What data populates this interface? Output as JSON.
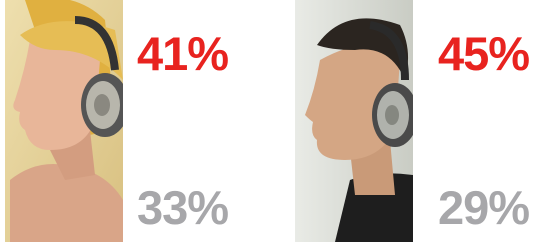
{
  "panels": [
    {
      "top": "41%",
      "bottom": "33%"
    },
    {
      "top": "45%",
      "bottom": "29%"
    }
  ]
}
